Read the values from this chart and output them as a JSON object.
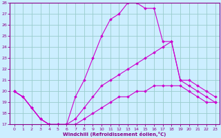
{
  "xlabel": "Windchill (Refroidissement éolien,°C)",
  "bg_color": "#cceeff",
  "grid_color": "#99cccc",
  "line_color": "#cc00cc",
  "xlim": [
    -0.5,
    23.5
  ],
  "ylim": [
    17,
    28
  ],
  "yticks": [
    17,
    18,
    19,
    20,
    21,
    22,
    23,
    24,
    25,
    26,
    27,
    28
  ],
  "xticks": [
    0,
    1,
    2,
    3,
    4,
    5,
    6,
    7,
    8,
    9,
    10,
    11,
    12,
    13,
    14,
    15,
    16,
    17,
    18,
    19,
    20,
    21,
    22,
    23
  ],
  "series": [
    {
      "x": [
        0,
        1,
        2,
        3,
        4,
        5,
        6,
        7,
        8,
        9,
        10,
        11,
        12,
        13,
        14,
        15,
        16,
        17,
        18,
        19,
        20,
        21,
        22,
        23
      ],
      "y": [
        20.0,
        19.5,
        18.5,
        17.5,
        17.0,
        17.0,
        17.0,
        19.5,
        21.0,
        23.0,
        25.0,
        26.5,
        27.0,
        28.0,
        28.0,
        27.5,
        27.5,
        24.5,
        24.5,
        21.0,
        21.0,
        20.5,
        20.0,
        19.5
      ]
    },
    {
      "x": [
        0,
        1,
        2,
        3,
        4,
        5,
        6,
        7,
        8,
        9,
        10,
        11,
        12,
        13,
        14,
        15,
        16,
        17,
        18,
        19,
        20,
        21,
        22,
        23
      ],
      "y": [
        20.0,
        19.5,
        18.5,
        17.5,
        17.0,
        17.0,
        17.0,
        17.5,
        18.5,
        19.5,
        20.5,
        21.0,
        21.5,
        22.0,
        22.5,
        23.0,
        23.5,
        24.0,
        24.5,
        21.0,
        20.5,
        20.0,
        19.5,
        19.0
      ]
    },
    {
      "x": [
        0,
        1,
        2,
        3,
        4,
        5,
        6,
        7,
        8,
        9,
        10,
        11,
        12,
        13,
        14,
        15,
        16,
        17,
        18,
        19,
        20,
        21,
        22,
        23
      ],
      "y": [
        20.0,
        19.5,
        18.5,
        17.5,
        17.0,
        17.0,
        17.0,
        17.0,
        17.5,
        18.0,
        18.5,
        19.0,
        19.5,
        19.5,
        20.0,
        20.0,
        20.5,
        20.5,
        20.5,
        20.5,
        20.0,
        19.5,
        19.0,
        19.0
      ]
    }
  ]
}
